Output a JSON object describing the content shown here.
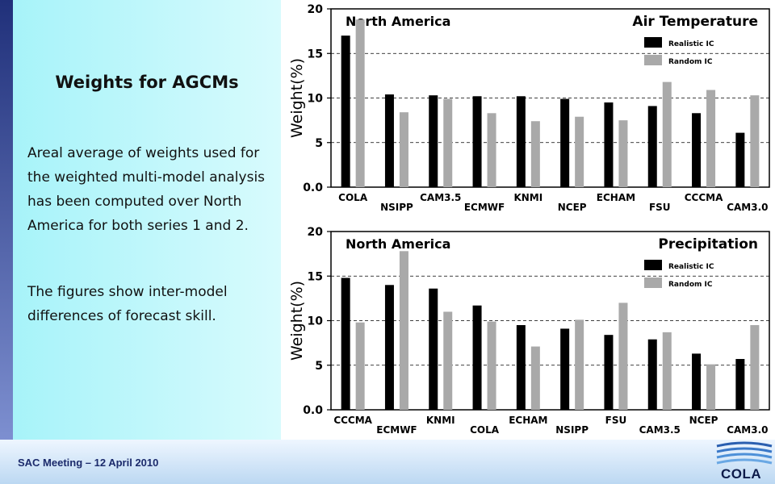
{
  "slide": {
    "title": "Weights for AGCMs",
    "paragraph1": "Areal average of weights used for the weighted multi-model analysis has been computed over North America for both series 1 and 2.",
    "paragraph2": "The figures show inter-model differences of forecast skill.",
    "footer": "SAC Meeting – 12 April 2010",
    "logo_text": "COLA"
  },
  "colors": {
    "realistic": "#000000",
    "random": "#a9a9a9"
  },
  "chart_data": [
    {
      "type": "bar",
      "title": "Air Temperature",
      "region_label": "North America",
      "ylabel": "Weight(%)",
      "ylim": [
        0,
        20
      ],
      "yticks": [
        "0.0",
        "5",
        "10",
        "15",
        "20"
      ],
      "grid": "dashed horizontal",
      "categories": [
        "COLA",
        "NSIPP",
        "CAM3.5",
        "ECMWF",
        "KNMI",
        "NCEP",
        "ECHAM",
        "FSU",
        "CCCMA",
        "CAM3.0"
      ],
      "series": [
        {
          "name": "Realistic IC",
          "values": [
            17.0,
            10.4,
            10.3,
            10.2,
            10.2,
            9.9,
            9.5,
            9.1,
            8.3,
            6.1
          ]
        },
        {
          "name": "Random IC",
          "values": [
            18.8,
            8.4,
            9.9,
            8.3,
            7.4,
            7.9,
            7.5,
            11.8,
            10.9,
            10.3
          ]
        }
      ]
    },
    {
      "type": "bar",
      "title": "Precipitation",
      "region_label": "North America",
      "ylabel": "Weight(%)",
      "ylim": [
        0,
        20
      ],
      "yticks": [
        "0.0",
        "5",
        "10",
        "15",
        "20"
      ],
      "grid": "dashed horizontal",
      "categories": [
        "CCCMA",
        "ECMWF",
        "KNMI",
        "COLA",
        "ECHAM",
        "NSIPP",
        "FSU",
        "CAM3.5",
        "NCEP",
        "CAM3.0"
      ],
      "series": [
        {
          "name": "Realistic IC",
          "values": [
            14.8,
            14.0,
            13.6,
            11.7,
            9.5,
            9.1,
            8.4,
            7.9,
            6.3,
            5.7
          ]
        },
        {
          "name": "Random IC",
          "values": [
            9.8,
            17.8,
            11.0,
            9.9,
            7.1,
            10.1,
            12.0,
            8.7,
            5.1,
            9.5
          ]
        }
      ]
    }
  ]
}
